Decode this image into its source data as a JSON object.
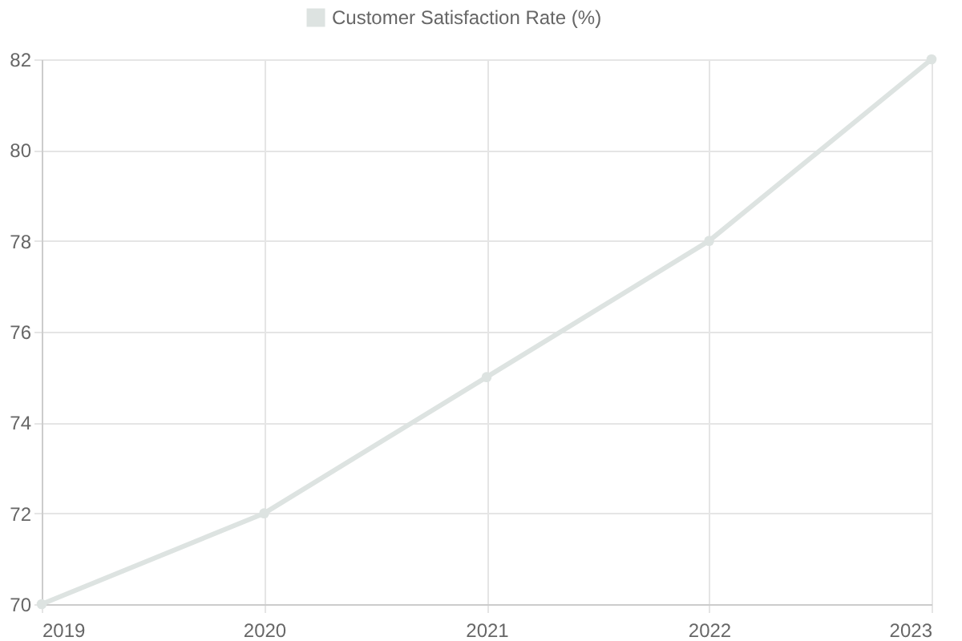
{
  "chart_data": {
    "type": "line",
    "categories": [
      "2019",
      "2020",
      "2021",
      "2022",
      "2023"
    ],
    "series": [
      {
        "name": "Customer Satisfaction Rate (%)",
        "color": "#dde3e1",
        "values": [
          70,
          72,
          75,
          78,
          82
        ]
      }
    ],
    "ylim": [
      70,
      82
    ],
    "yticks": [
      70,
      72,
      74,
      76,
      78,
      80,
      82
    ],
    "grid": true,
    "legend": "top",
    "marker": "circle",
    "line_style": "solid"
  }
}
